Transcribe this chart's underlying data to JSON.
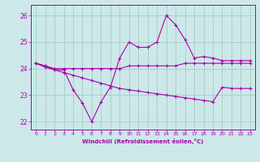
{
  "x": [
    0,
    1,
    2,
    3,
    4,
    5,
    6,
    7,
    8,
    9,
    10,
    11,
    12,
    13,
    14,
    15,
    16,
    17,
    18,
    19,
    20,
    21,
    22,
    23
  ],
  "line1": [
    24.2,
    24.1,
    24.0,
    24.0,
    24.0,
    24.0,
    24.0,
    24.0,
    24.0,
    24.0,
    24.1,
    24.1,
    24.1,
    24.1,
    24.1,
    24.1,
    24.2,
    24.2,
    24.2,
    24.2,
    24.2,
    24.2,
    24.2,
    24.2
  ],
  "line2": [
    24.2,
    24.1,
    23.95,
    23.95,
    23.2,
    22.7,
    22.0,
    22.75,
    23.3,
    24.4,
    25.0,
    24.8,
    24.8,
    25.0,
    26.0,
    25.65,
    25.1,
    24.4,
    24.45,
    24.4,
    24.3,
    24.3,
    24.3,
    24.3
  ],
  "line3": [
    24.2,
    24.05,
    23.95,
    23.85,
    23.75,
    23.65,
    23.55,
    23.45,
    23.35,
    23.25,
    23.2,
    23.15,
    23.1,
    23.05,
    23.0,
    22.95,
    22.9,
    22.85,
    22.8,
    22.75,
    23.3,
    23.25,
    23.25,
    23.25
  ],
  "bg_color": "#cce8e8",
  "grid_color": "#aacaca",
  "line_color": "#aa00aa",
  "ylim": [
    21.7,
    26.4
  ],
  "yticks": [
    22,
    23,
    24,
    25,
    26
  ],
  "xticks": [
    0,
    1,
    2,
    3,
    4,
    5,
    6,
    7,
    8,
    9,
    10,
    11,
    12,
    13,
    14,
    15,
    16,
    17,
    18,
    19,
    20,
    21,
    22,
    23
  ],
  "xlabel": "Windchill (Refroidissement éolien,°C)"
}
